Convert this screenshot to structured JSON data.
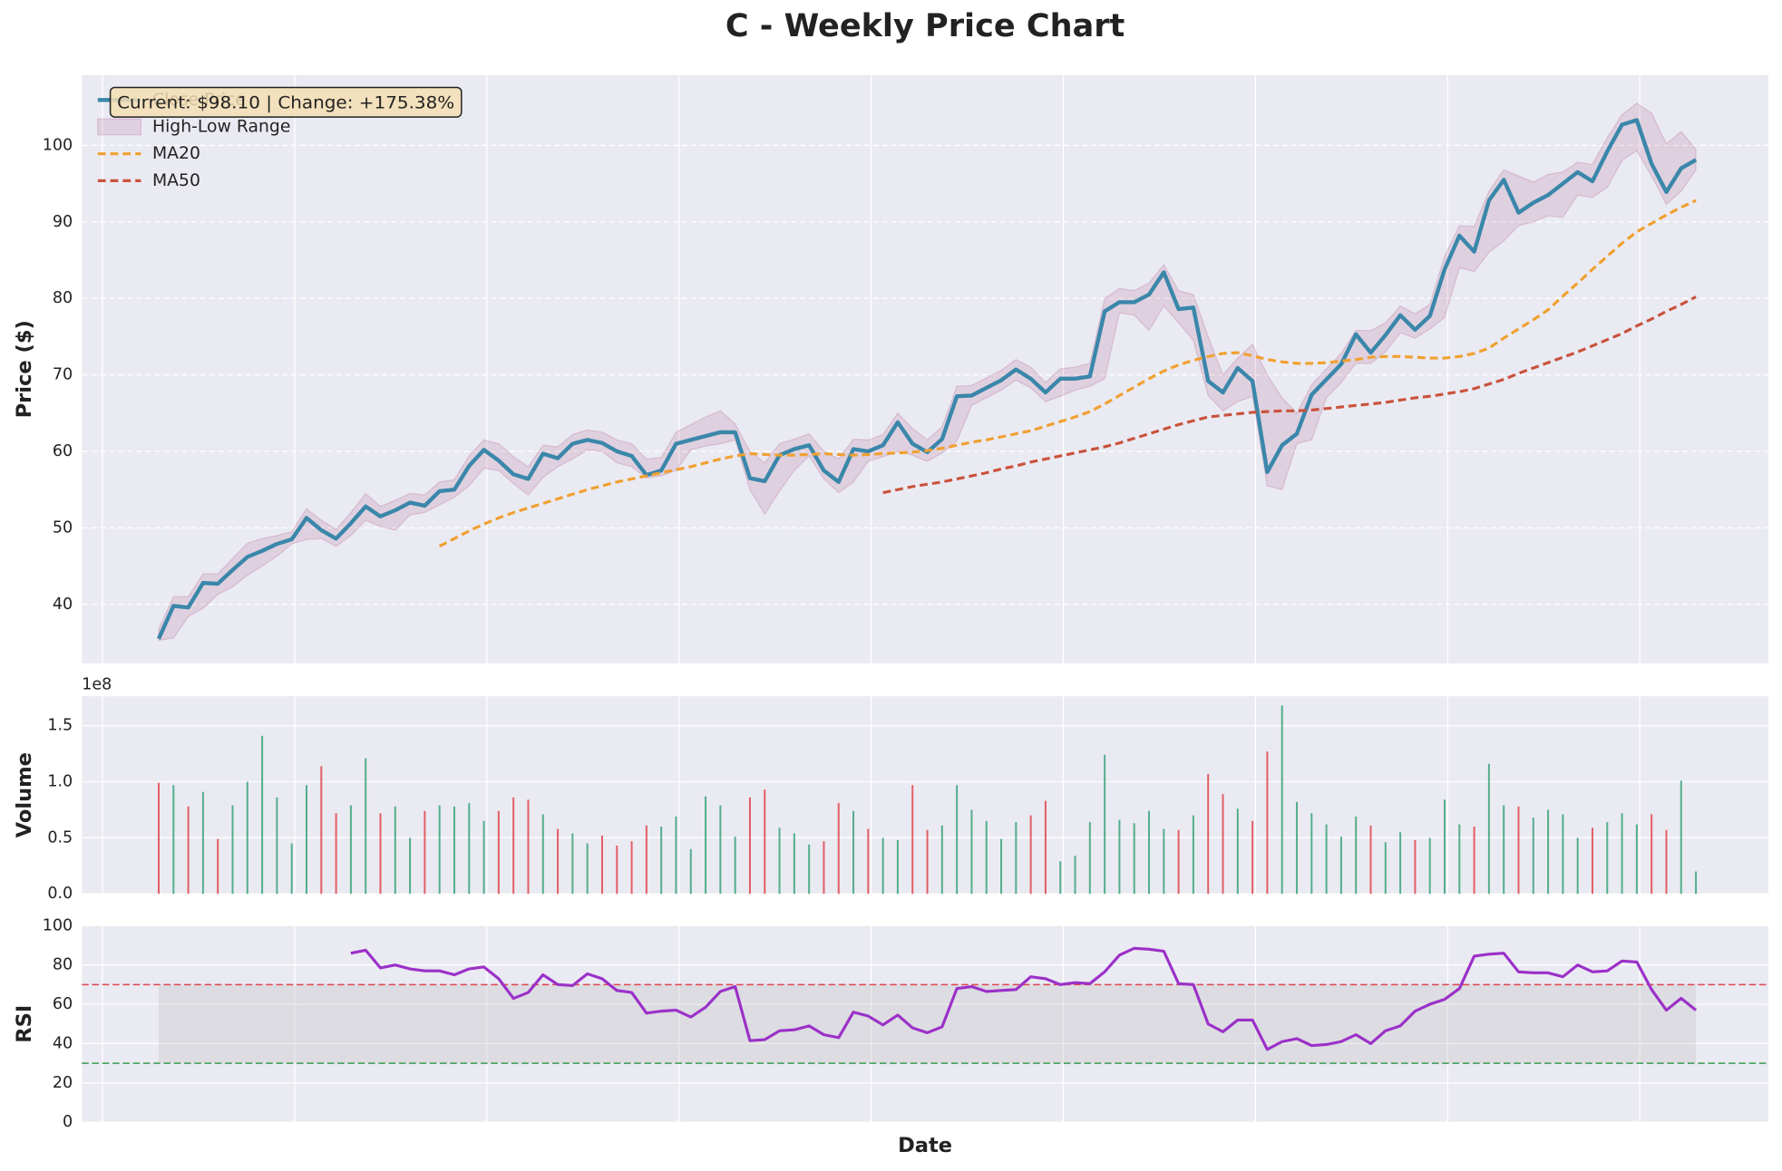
{
  "title": "C - Weekly Price Chart",
  "xlim": [
    -5.2,
    108.9
  ],
  "xticks": [
    -3.8,
    9.2,
    22.2,
    35.2,
    48.2,
    61.2,
    74.2,
    87.2,
    100.2
  ],
  "chart_data": [
    {
      "type": "line",
      "ylabel": "Price ($)",
      "annotation": "Current: $98.10 | Change: +175.38%",
      "ylim": [
        32.3,
        109.2
      ],
      "yticks": [
        40,
        50,
        60,
        70,
        80,
        90,
        100
      ],
      "grid": true,
      "legend": "upper left",
      "series": [
        {
          "name": "Close Price",
          "color": "#3a87aa",
          "values": [
            35.5,
            39.8,
            39.6,
            42.8,
            42.7,
            44.5,
            46.2,
            47,
            47.9,
            48.5,
            51.3,
            49.7,
            48.6,
            50.6,
            52.8,
            51.5,
            52.3,
            53.3,
            52.9,
            54.8,
            55,
            58.1,
            60.2,
            58.8,
            57,
            56.4,
            59.7,
            59.1,
            61,
            61.5,
            61.1,
            60,
            59.4,
            56.9,
            57.5,
            61,
            61.5,
            62,
            62.5,
            62.5,
            56.5,
            56.1,
            59.5,
            60.3,
            60.8,
            57.5,
            56,
            60.3,
            60,
            60.8,
            63.8,
            61,
            59.9,
            61.6,
            67.2,
            67.3,
            68.3,
            69.3,
            70.7,
            69.5,
            67.7,
            69.5,
            69.5,
            69.8,
            78.3,
            79.5,
            79.5,
            80.5,
            83.4,
            78.6,
            78.8,
            69.2,
            67.7,
            70.9,
            69.2,
            57.3,
            60.8,
            62.3,
            67.4,
            69.4,
            71.4,
            75.3,
            72.9,
            75.2,
            77.8,
            75.9,
            77.7,
            83.8,
            88.2,
            86.1,
            92.8,
            95.5,
            91.2,
            92.5,
            93.5,
            95,
            96.5,
            95.3,
            99.2,
            102.7,
            103.3,
            97.6,
            93.9,
            97,
            98.1
          ]
        },
        {
          "name": "High-Low Range",
          "color": "#a23b72",
          "high": [
            36.8,
            41,
            41,
            44,
            44,
            46,
            48,
            48.6,
            49,
            49.5,
            52.5,
            51,
            49.8,
            52,
            54.5,
            52.8,
            53.6,
            54.5,
            54.3,
            56,
            56.3,
            59.4,
            61.5,
            61,
            59.3,
            58,
            60.8,
            60.6,
            62.2,
            62.8,
            62.5,
            61.5,
            61,
            59,
            59.2,
            62.5,
            63.5,
            64.5,
            65.3,
            63.6,
            60,
            58.5,
            61,
            61.6,
            62.3,
            60,
            59,
            61.6,
            61.5,
            62.2,
            65,
            63,
            61.5,
            63.2,
            68.5,
            68.6,
            69.6,
            70.6,
            72,
            71,
            69,
            70.8,
            71,
            71.5,
            80,
            81.3,
            81,
            82,
            84.4,
            81,
            80.5,
            75,
            70,
            72.2,
            74,
            70,
            67,
            65,
            68.7,
            70.8,
            72.8,
            75.8,
            75.8,
            76.8,
            79,
            78,
            79.2,
            85.5,
            89.5,
            89.4,
            94,
            96.8,
            96,
            95.2,
            96.2,
            96.5,
            97.8,
            97.5,
            101,
            104,
            105.5,
            104.2,
            100.2,
            101.8,
            99.5
          ],
          "low": [
            35.3,
            35.6,
            38.4,
            39.5,
            41.3,
            42.3,
            43.8,
            45,
            46.3,
            47.9,
            48.5,
            48.6,
            47.6,
            49,
            51,
            50.2,
            49.7,
            51.7,
            52,
            53,
            54,
            55.5,
            57.8,
            57.5,
            55.8,
            54.3,
            56.6,
            58,
            59,
            60.2,
            60,
            58.5,
            58,
            56.5,
            56.8,
            57.5,
            60.2,
            60.7,
            61,
            61.5,
            55,
            51.8,
            54.8,
            57.5,
            59.4,
            56.4,
            54.6,
            56,
            58.7,
            59.3,
            60,
            59.5,
            58.7,
            59.8,
            61.4,
            66,
            67,
            68,
            69.3,
            68.3,
            66.5,
            67.2,
            68,
            68.5,
            69.5,
            78.1,
            77.8,
            75.8,
            79,
            76.8,
            74.5,
            67.3,
            65.3,
            66.5,
            67.2,
            55.5,
            55,
            61,
            61.5,
            67,
            69,
            71.5,
            71.5,
            73,
            75.5,
            74.8,
            76,
            77.5,
            84,
            83.5,
            86,
            87.5,
            89.5,
            90,
            90.8,
            90.6,
            93.5,
            93.2,
            94.5,
            98,
            99.3,
            96,
            92.3,
            94,
            96.8
          ]
        },
        {
          "name": "MA20",
          "color": "#f0a030",
          "dashed": true,
          "values": [
            null,
            null,
            null,
            null,
            null,
            null,
            null,
            null,
            null,
            null,
            null,
            null,
            null,
            null,
            null,
            null,
            null,
            null,
            null,
            47.6,
            48.6,
            49.6,
            50.5,
            51.3,
            52,
            52.6,
            53.2,
            53.8,
            54.4,
            55,
            55.5,
            56,
            56.4,
            56.8,
            57.2,
            57.6,
            58,
            58.5,
            59,
            59.4,
            59.7,
            59.6,
            59.5,
            59.5,
            59.6,
            59.7,
            59.6,
            59.5,
            59.6,
            59.7,
            59.8,
            59.9,
            60.1,
            60.4,
            60.8,
            61.2,
            61.5,
            61.9,
            62.3,
            62.7,
            63.3,
            63.9,
            64.5,
            65.2,
            66.2,
            67.3,
            68.4,
            69.5,
            70.5,
            71.3,
            71.9,
            72.4,
            72.8,
            72.9,
            72.5,
            72,
            71.7,
            71.5,
            71.5,
            71.6,
            71.8,
            72,
            72.3,
            72.4,
            72.4,
            72.3,
            72.2,
            72.2,
            72.4,
            72.8,
            73.5,
            74.8,
            76,
            77.2,
            78.5,
            80.3,
            82,
            83.8,
            85.5,
            87.2,
            88.7,
            89.8,
            90.9,
            91.9,
            92.8
          ]
        },
        {
          "name": "MA50",
          "color": "#c9523c",
          "dashed": true,
          "values": [
            null,
            null,
            null,
            null,
            null,
            null,
            null,
            null,
            null,
            null,
            null,
            null,
            null,
            null,
            null,
            null,
            null,
            null,
            null,
            null,
            null,
            null,
            null,
            null,
            null,
            null,
            null,
            null,
            null,
            null,
            null,
            null,
            null,
            null,
            null,
            null,
            null,
            null,
            null,
            null,
            null,
            null,
            null,
            null,
            null,
            null,
            null,
            null,
            null,
            54.6,
            55,
            55.4,
            55.7,
            56,
            56.4,
            56.8,
            57.2,
            57.7,
            58.1,
            58.6,
            59,
            59.4,
            59.8,
            60.2,
            60.6,
            61.1,
            61.7,
            62.3,
            62.9,
            63.5,
            64,
            64.5,
            64.7,
            64.9,
            65.1,
            65.2,
            65.3,
            65.3,
            65.4,
            65.6,
            65.8,
            66,
            66.2,
            66.4,
            66.7,
            67,
            67.2,
            67.5,
            67.8,
            68.2,
            68.8,
            69.4,
            70.2,
            70.9,
            71.6,
            72.3,
            73,
            73.8,
            74.6,
            75.4,
            76.4,
            77.3,
            78.3,
            79.2,
            80.2
          ]
        }
      ]
    },
    {
      "type": "bar",
      "ylabel": "Volume",
      "offset_label": "1e8",
      "ylim": [
        0,
        176300000.0
      ],
      "yticks": [
        {
          "value": 0,
          "label": "0.0"
        },
        {
          "value": 50000000.0,
          "label": "0.5"
        },
        {
          "value": 100000000.0,
          "label": "1.0"
        },
        {
          "value": 150000000.0,
          "label": "1.5"
        }
      ],
      "grid": true,
      "colors": {
        "up": "#3aa37a",
        "down": "#e0464e"
      },
      "values": [
        99000000.0,
        97000000.0,
        78000000.0,
        91000000.0,
        49000000.0,
        79000000.0,
        100000000.0,
        141000000.0,
        86000000.0,
        45000000.0,
        97000000.0,
        114000000.0,
        72000000.0,
        79000000.0,
        121000000.0,
        72000000.0,
        78000000.0,
        50000000.0,
        74000000.0,
        79000000.0,
        78000000.0,
        81000000.0,
        65000000.0,
        74000000.0,
        86000000.0,
        84000000.0,
        71000000.0,
        58000000.0,
        54000000.0,
        45000000.0,
        52000000.0,
        43000000.0,
        47000000.0,
        61000000.0,
        60000000.0,
        69000000.0,
        40000000.0,
        87000000.0,
        79000000.0,
        51000000.0,
        86000000.0,
        93000000.0,
        59000000.0,
        54000000.0,
        44000000.0,
        47000000.0,
        81000000.0,
        74000000.0,
        58000000.0,
        50000000.0,
        48000000.0,
        97000000.0,
        57000000.0,
        61000000.0,
        97000000.0,
        75000000.0,
        65000000.0,
        49000000.0,
        64000000.0,
        70000000.0,
        83000000.0,
        29000000.0,
        34000000.0,
        64000000.0,
        124000000.0,
        66000000.0,
        63000000.0,
        74000000.0,
        58000000.0,
        57000000.0,
        70000000.0,
        107000000.0,
        89000000.0,
        76000000.0,
        65000000.0,
        127000000.0,
        168000000.0,
        82000000.0,
        72000000.0,
        62000000.0,
        51000000.0,
        69000000.0,
        61000000.0,
        46000000.0,
        55000000.0,
        48000000.0,
        50000000.0,
        84000000.0,
        62000000.0,
        60000000.0,
        116000000.0,
        79000000.0,
        78000000.0,
        68000000.0,
        75000000.0,
        71000000.0,
        50000000.0,
        59000000.0,
        64000000.0,
        72000000.0,
        62000000.0,
        71000000.0,
        57000000.0,
        101000000.0,
        20000000.0
      ]
    },
    {
      "type": "line",
      "ylabel": "RSI",
      "xlabel": "Date",
      "ylim": [
        0,
        100
      ],
      "yticks": [
        0,
        20,
        40,
        60,
        80,
        100
      ],
      "grid": true,
      "overbought": 70,
      "oversold": 30,
      "overbought_color": "#e0464e",
      "oversold_color": "#3a9a50",
      "band_color": "#bdbdbd",
      "series": [
        {
          "color": "#9b30c8",
          "values": [
            null,
            null,
            null,
            null,
            null,
            null,
            null,
            null,
            null,
            null,
            null,
            null,
            null,
            86,
            87.5,
            78.5,
            80,
            78,
            77,
            77,
            75,
            78,
            79,
            73,
            63,
            66,
            75,
            70,
            69.5,
            75.5,
            73,
            67,
            66,
            55.5,
            56.5,
            57,
            53.5,
            58.5,
            66.5,
            69,
            41.5,
            42,
            46.5,
            47,
            49,
            44.5,
            43,
            56,
            54,
            49.5,
            54.5,
            48,
            45.5,
            48.5,
            68,
            69,
            66.5,
            67,
            67.5,
            74,
            73,
            70,
            71,
            70.5,
            76.5,
            85,
            88.5,
            88,
            87,
            70.5,
            70,
            50,
            46,
            52,
            52,
            37,
            41,
            42.5,
            39,
            39.5,
            41,
            44.5,
            40,
            46.5,
            49,
            56.5,
            60,
            62.5,
            68,
            84.5,
            85.5,
            86,
            76.5,
            76,
            76,
            74,
            80,
            76.5,
            77,
            82,
            81.5,
            67.5,
            57,
            63,
            57
          ]
        }
      ]
    }
  ]
}
